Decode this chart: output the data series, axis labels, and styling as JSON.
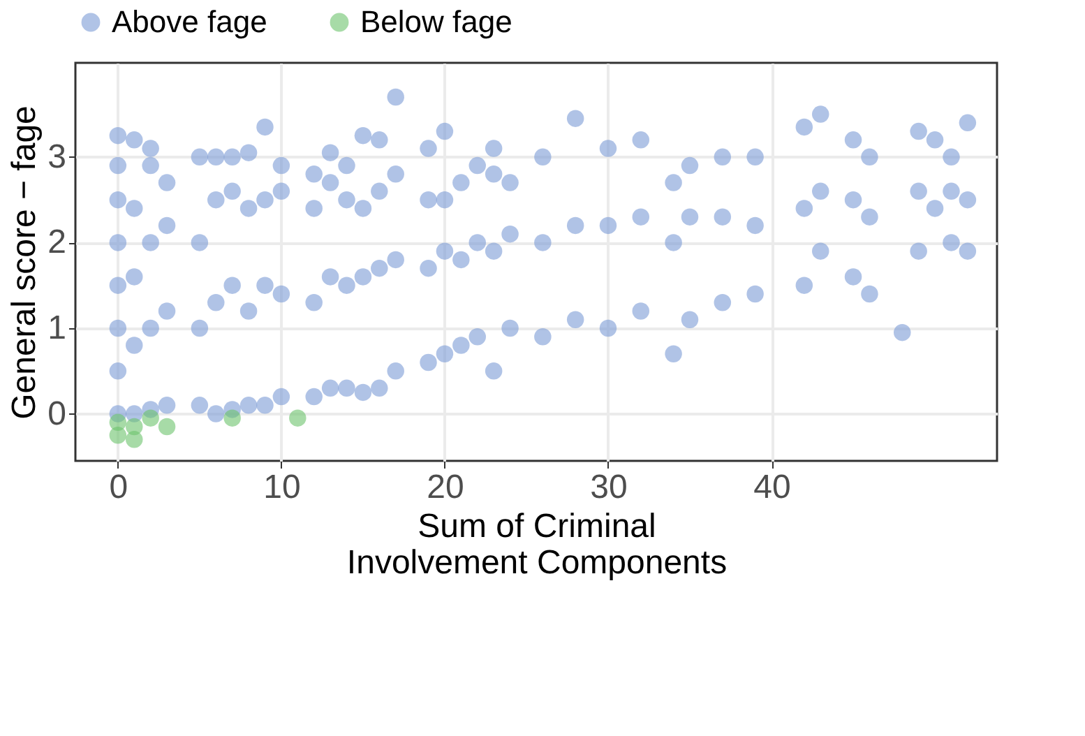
{
  "chart_data": {
    "type": "scatter",
    "xlabel": "Sum of Criminal Involvement Components",
    "ylabel": "General score − fage",
    "xlim": [
      -2.6,
      53.8
    ],
    "ylim": [
      -0.55,
      4.1
    ],
    "xticks": [
      0,
      10,
      20,
      30,
      40
    ],
    "yticks": [
      0,
      1,
      2,
      3
    ],
    "grid": true,
    "legend": "top",
    "marker": "circle",
    "series": [
      {
        "name": "Above fage",
        "color": "#7b9bd6",
        "x": [
          0,
          0,
          0,
          0,
          0,
          0,
          0,
          0,
          1,
          1,
          1,
          1,
          1,
          2,
          2,
          2,
          2,
          2,
          3,
          3,
          3,
          3,
          5,
          5,
          5,
          5,
          6,
          6,
          6,
          6,
          7,
          7,
          7,
          7,
          8,
          8,
          8,
          8,
          9,
          9,
          9,
          9,
          10,
          10,
          10,
          10,
          12,
          12,
          12,
          12,
          13,
          13,
          13,
          13,
          14,
          14,
          14,
          14,
          15,
          15,
          15,
          15,
          16,
          16,
          16,
          16,
          17,
          17,
          17,
          17,
          19,
          19,
          19,
          19,
          20,
          20,
          20,
          20,
          21,
          21,
          21,
          22,
          22,
          22,
          23,
          23,
          23,
          23,
          24,
          24,
          24,
          26,
          26,
          26,
          28,
          28,
          28,
          30,
          30,
          30,
          32,
          32,
          32,
          34,
          34,
          34,
          35,
          35,
          35,
          37,
          37,
          37,
          39,
          39,
          39,
          42,
          42,
          42,
          43,
          43,
          43,
          45,
          45,
          45,
          46,
          46,
          46,
          49,
          49,
          49,
          48,
          50,
          50,
          51,
          51,
          51,
          52,
          52,
          52
        ],
        "values": [
          0.0,
          0.5,
          1.0,
          1.5,
          2.0,
          2.5,
          2.9,
          3.25,
          0.0,
          0.8,
          1.6,
          2.4,
          3.2,
          0.05,
          1.0,
          2.0,
          2.9,
          3.1,
          0.1,
          1.2,
          2.2,
          2.7,
          0.1,
          1.0,
          2.0,
          3.0,
          0.0,
          1.3,
          2.5,
          3.0,
          0.05,
          1.5,
          2.6,
          3.0,
          0.1,
          1.2,
          2.4,
          3.05,
          0.1,
          1.5,
          2.5,
          3.35,
          0.2,
          1.4,
          2.6,
          2.9,
          0.2,
          1.3,
          2.4,
          2.8,
          0.3,
          1.6,
          2.7,
          3.05,
          0.3,
          1.5,
          2.5,
          2.9,
          0.25,
          1.6,
          2.4,
          3.25,
          0.3,
          1.7,
          2.6,
          3.2,
          0.5,
          1.8,
          2.8,
          3.7,
          0.6,
          1.7,
          2.5,
          3.1,
          0.7,
          1.9,
          2.5,
          3.3,
          0.8,
          1.8,
          2.7,
          0.9,
          2.0,
          2.9,
          0.5,
          1.9,
          2.8,
          3.1,
          1.0,
          2.1,
          2.7,
          0.9,
          2.0,
          3.0,
          1.1,
          2.2,
          3.45,
          1.0,
          2.2,
          3.1,
          1.2,
          2.3,
          3.2,
          0.7,
          2.0,
          2.7,
          1.1,
          2.3,
          2.9,
          1.3,
          2.3,
          3.0,
          1.4,
          2.2,
          3.0,
          1.5,
          2.4,
          3.35,
          1.9,
          2.6,
          3.5,
          1.6,
          2.5,
          3.2,
          1.4,
          2.3,
          3.0,
          1.9,
          2.6,
          3.3,
          0.95,
          2.4,
          3.2,
          2.0,
          2.6,
          3.0,
          1.9,
          2.5,
          3.4
        ]
      },
      {
        "name": "Below fage",
        "color": "#6cc36c",
        "x": [
          0,
          0,
          1,
          1,
          2,
          3,
          7,
          11
        ],
        "values": [
          -0.25,
          -0.1,
          -0.3,
          -0.15,
          -0.05,
          -0.15,
          -0.05,
          -0.05
        ]
      }
    ]
  }
}
